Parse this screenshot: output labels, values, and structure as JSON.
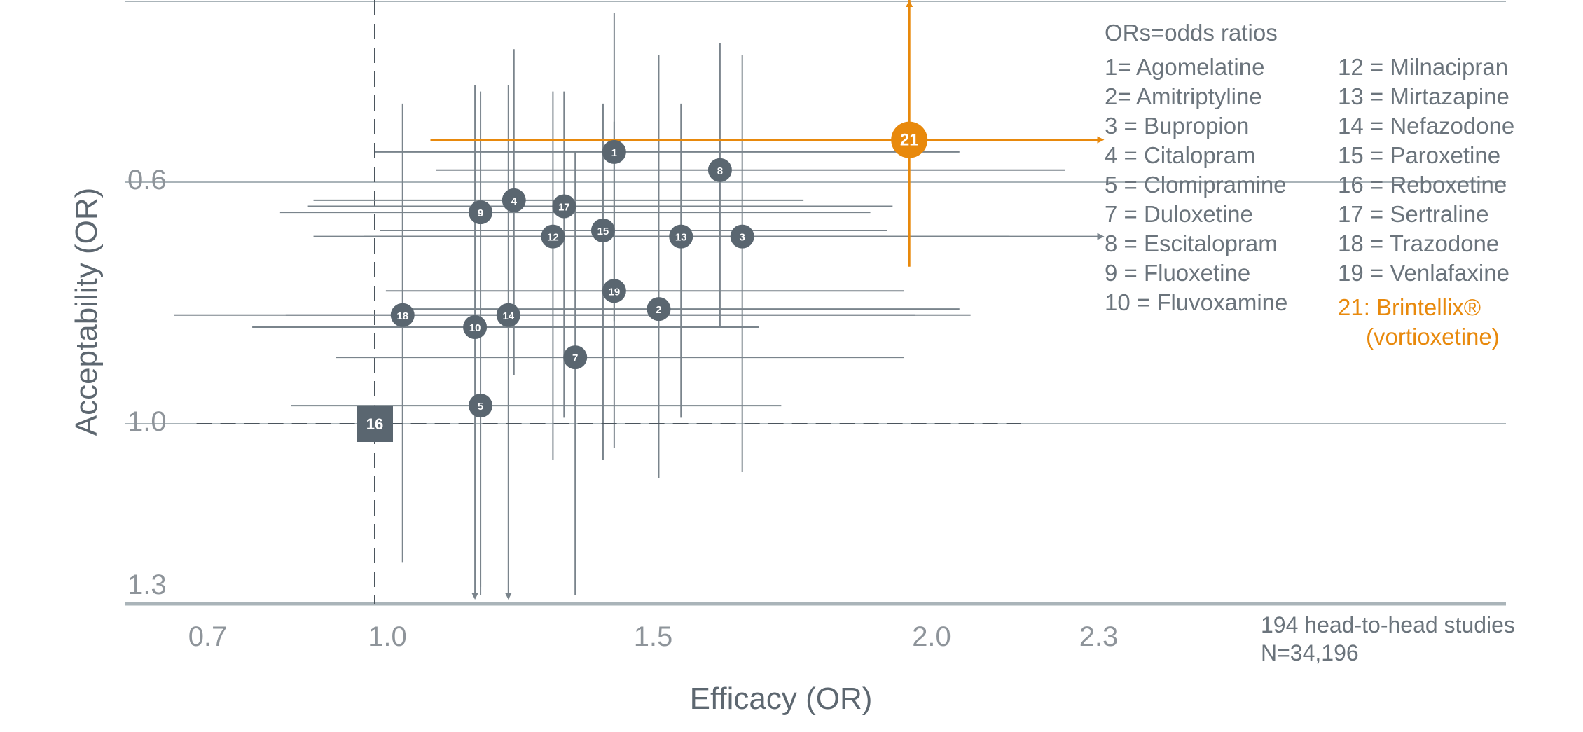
{
  "chart_data": {
    "type": "scatter",
    "xlabel": "Efficacy (OR)",
    "ylabel": "Acceptability (OR)",
    "x_ticks": [
      "0.7",
      "1.0",
      "1.5",
      "2.0",
      "2.3"
    ],
    "y_ticks": [
      "0.6",
      "1.0",
      "1.3"
    ],
    "x_tick_values": [
      0.7,
      1.0,
      1.5,
      2.0,
      2.3
    ],
    "y_tick_values": [
      0.6,
      1.0,
      1.3
    ],
    "y_axis_inverted": true,
    "reference_lines": {
      "x": 1.0,
      "y": 1.0
    },
    "grid": "horizontal",
    "points": [
      {
        "id": "1",
        "x": 1.43,
        "y": 0.55,
        "xlo": 1.0,
        "xhi": 2.05,
        "ylo": 0.32,
        "yhi": 0.83
      },
      {
        "id": "2",
        "x": 1.51,
        "y": 0.81,
        "xlo": 1.04,
        "xhi": 2.05,
        "ylo": 0.39,
        "yhi": 1.09
      },
      {
        "id": "3",
        "x": 1.66,
        "y": 0.69,
        "xlo": 0.98,
        "xhi": 2.3,
        "ylo": 0.39,
        "yhi": 1.08
      },
      {
        "id": "4",
        "x": 1.25,
        "y": 0.63,
        "xlo": 0.89,
        "xhi": 1.77,
        "ylo": 0.38,
        "yhi": 0.92
      },
      {
        "id": "5",
        "x": 1.19,
        "y": 0.97,
        "xlo": 0.85,
        "xhi": 1.73,
        "ylo": 0.98,
        "yhi": 1.3
      },
      {
        "id": "7",
        "x": 1.36,
        "y": 0.89,
        "xlo": 0.93,
        "xhi": 1.95,
        "ylo": 0.55,
        "yhi": 1.3
      },
      {
        "id": "8",
        "x": 1.62,
        "y": 0.58,
        "xlo": 1.11,
        "xhi": 2.24,
        "ylo": 0.37,
        "yhi": 0.84
      },
      {
        "id": "9",
        "x": 1.19,
        "y": 0.65,
        "xlo": 0.83,
        "xhi": 1.89,
        "ylo": 0.45,
        "yhi": 1.27
      },
      {
        "id": "10",
        "x": 1.18,
        "y": 0.84,
        "xlo": 0.78,
        "xhi": 1.69,
        "ylo": 0.44,
        "yhi": 1.3
      },
      {
        "id": "12",
        "x": 1.32,
        "y": 0.69,
        "xlo": 0.89,
        "xhi": 1.92,
        "ylo": 0.45,
        "yhi": 1.06
      },
      {
        "id": "13",
        "x": 1.55,
        "y": 0.69,
        "xlo": 1.0,
        "xhi": 2.14,
        "ylo": 0.47,
        "yhi": 0.99
      },
      {
        "id": "14",
        "x": 1.24,
        "y": 0.82,
        "xlo": 0.84,
        "xhi": 1.97,
        "ylo": 0.44,
        "yhi": 1.3
      },
      {
        "id": "15",
        "x": 1.41,
        "y": 0.68,
        "xlo": 1.01,
        "xhi": 1.92,
        "ylo": 0.47,
        "yhi": 1.06
      },
      {
        "id": "17",
        "x": 1.34,
        "y": 0.64,
        "xlo": 0.88,
        "xhi": 1.93,
        "ylo": 0.45,
        "yhi": 0.99
      },
      {
        "id": "18",
        "x": 1.05,
        "y": 0.82,
        "xlo": 0.64,
        "xhi": 2.07,
        "ylo": 0.47,
        "yhi": 1.23
      },
      {
        "id": "19",
        "x": 1.43,
        "y": 0.78,
        "xlo": 1.02,
        "xhi": 1.95,
        "ylo": 0.5,
        "yhi": 1.04
      },
      {
        "id": "16",
        "x": 1.0,
        "y": 1.0,
        "xlo": 0.68,
        "xhi": 2.16,
        "ylo": 0.36,
        "yhi": 1.3,
        "shape": "square",
        "dashed": true
      },
      {
        "id": "21",
        "x": 1.96,
        "y": 0.53,
        "xlo": 1.1,
        "xhi": 2.3,
        "ylo": 0.33,
        "yhi": 0.74,
        "highlight": true
      }
    ],
    "colors": {
      "marker": "#5a6670",
      "highlight": "#e8890c",
      "errorbar": "#7a848c",
      "grid": "#aab4b9"
    }
  },
  "legend": {
    "header": "ORs=odds ratios",
    "left": [
      "1= Agomelatine",
      "2= Amitriptyline",
      "3 = Bupropion",
      "4 = Citalopram",
      "5 = Clomipramine",
      "7 = Duloxetine",
      "8 = Escitalopram",
      "9 = Fluoxetine",
      "10 = Fluvoxamine"
    ],
    "right": [
      "12 = Milnacipran",
      "13 = Mirtazapine",
      "14 = Nefazodone",
      "15 = Paroxetine",
      "16 = Reboxetine",
      "17 = Sertraline",
      "18 = Trazodone",
      "19 = Venlafaxine"
    ],
    "highlight_line1": "21: Brintellix®",
    "highlight_line2": "(vortioxetine)"
  },
  "note": {
    "line1": "194 head-to-head studies",
    "line2": "N=34,196"
  }
}
